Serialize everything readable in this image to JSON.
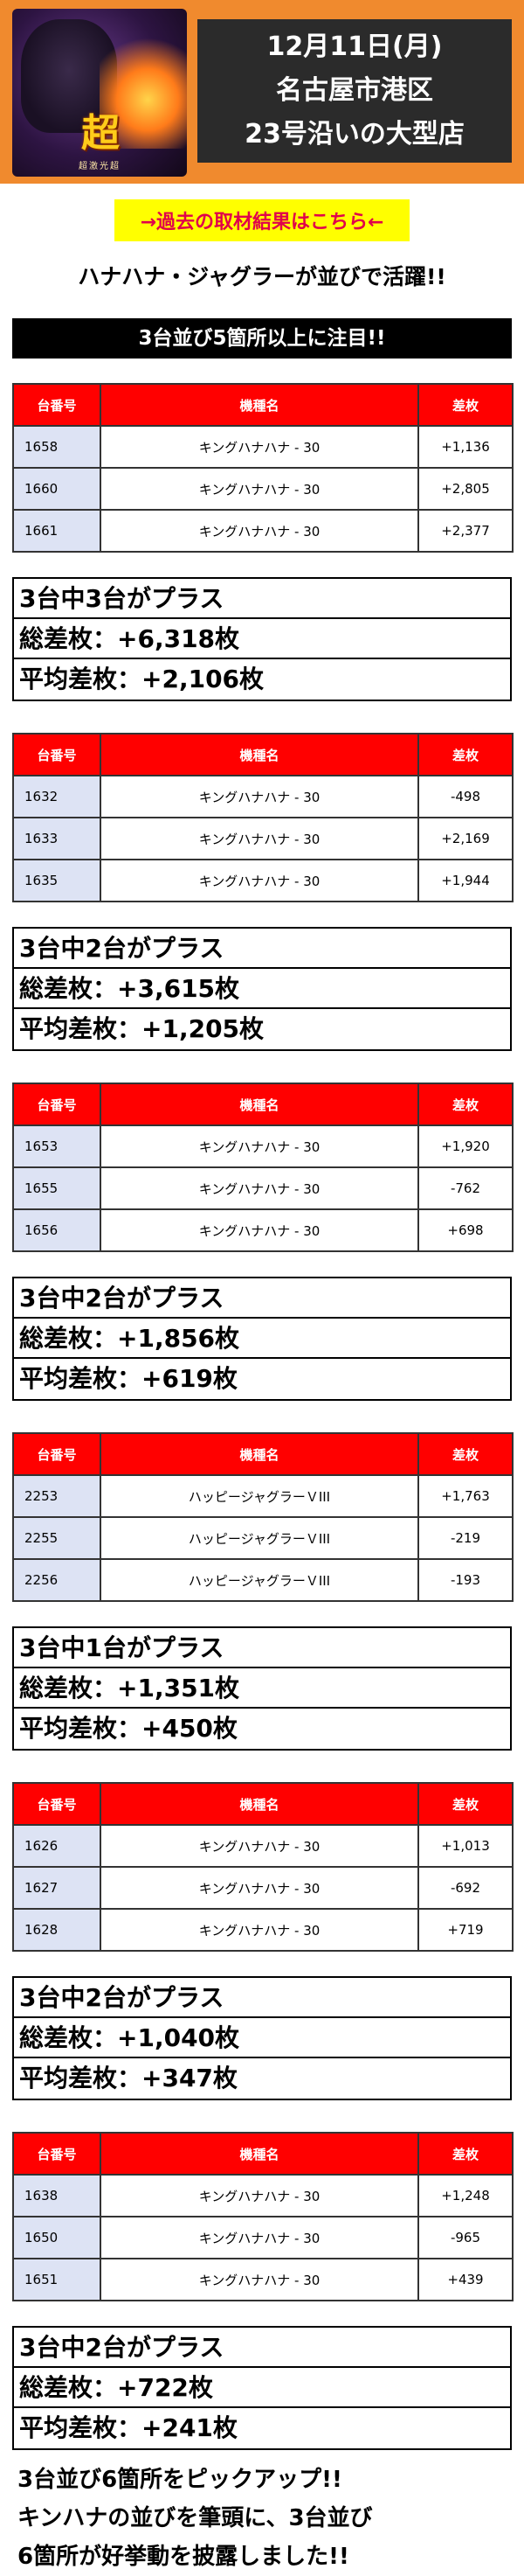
{
  "header": {
    "logo_text": "超",
    "logo_sub": "超激光超",
    "title_lines": [
      "12月11日(月)",
      "名古屋市港区",
      "23号沿いの大型店"
    ]
  },
  "past_link": "→過去の取材結果はこちら←",
  "lead": "ハナハナ・ジャグラーが並びで活躍!!",
  "section_title": "3台並び5箇所以上に注目!!",
  "table_headers": [
    "台番号",
    "機種名",
    "差枚"
  ],
  "groups": [
    {
      "rows": [
        {
          "num": "1658",
          "machine": "キングハナハナ - 30",
          "diff": "+1,136"
        },
        {
          "num": "1660",
          "machine": "キングハナハナ - 30",
          "diff": "+2,805"
        },
        {
          "num": "1661",
          "machine": "キングハナハナ - 30",
          "diff": "+2,377"
        }
      ],
      "summary": [
        "3台中3台がプラス",
        "総差枚：+6,318枚",
        "平均差枚：+2,106枚"
      ]
    },
    {
      "rows": [
        {
          "num": "1632",
          "machine": "キングハナハナ - 30",
          "diff": "-498"
        },
        {
          "num": "1633",
          "machine": "キングハナハナ - 30",
          "diff": "+2,169"
        },
        {
          "num": "1635",
          "machine": "キングハナハナ - 30",
          "diff": "+1,944"
        }
      ],
      "summary": [
        "3台中2台がプラス",
        "総差枚：+3,615枚",
        "平均差枚：+1,205枚"
      ]
    },
    {
      "rows": [
        {
          "num": "1653",
          "machine": "キングハナハナ - 30",
          "diff": "+1,920"
        },
        {
          "num": "1655",
          "machine": "キングハナハナ - 30",
          "diff": "-762"
        },
        {
          "num": "1656",
          "machine": "キングハナハナ - 30",
          "diff": "+698"
        }
      ],
      "summary": [
        "3台中2台がプラス",
        "総差枚：+1,856枚",
        "平均差枚：+619枚"
      ]
    },
    {
      "rows": [
        {
          "num": "2253",
          "machine": "ハッピージャグラーＶIII",
          "diff": "+1,763"
        },
        {
          "num": "2255",
          "machine": "ハッピージャグラーＶIII",
          "diff": "-219"
        },
        {
          "num": "2256",
          "machine": "ハッピージャグラーＶIII",
          "diff": "-193"
        }
      ],
      "summary": [
        "3台中1台がプラス",
        "総差枚：+1,351枚",
        "平均差枚：+450枚"
      ]
    },
    {
      "rows": [
        {
          "num": "1626",
          "machine": "キングハナハナ - 30",
          "diff": "+1,013"
        },
        {
          "num": "1627",
          "machine": "キングハナハナ - 30",
          "diff": "-692"
        },
        {
          "num": "1628",
          "machine": "キングハナハナ - 30",
          "diff": "+719"
        }
      ],
      "summary": [
        "3台中2台がプラス",
        "総差枚：+1,040枚",
        "平均差枚：+347枚"
      ]
    },
    {
      "rows": [
        {
          "num": "1638",
          "machine": "キングハナハナ - 30",
          "diff": "+1,248"
        },
        {
          "num": "1650",
          "machine": "キングハナハナ - 30",
          "diff": "-965"
        },
        {
          "num": "1651",
          "machine": "キングハナハナ - 30",
          "diff": "+439"
        }
      ],
      "summary": [
        "3台中2台がプラス",
        "総差枚：+722枚",
        "平均差枚：+241枚"
      ]
    }
  ],
  "footer": [
    "3台並び6箇所をピックアップ!!",
    "キンハナの並びを筆頭に、3台並び",
    "6箇所が好挙動を披露しました!!"
  ],
  "colors": {
    "header_bg": "#f08a2e",
    "title_box_bg": "#2b2b2b",
    "link_bg": "#ffff00",
    "link_text": "#e0004b",
    "table_header_bg": "#ff0000",
    "num_cell_bg": "#dde3f4"
  }
}
